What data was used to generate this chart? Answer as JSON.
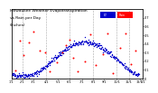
{
  "title_line1": "Milwaukee Weather Evapotranspiration",
  "title_line2": "vs Rain per Day",
  "title_line3": "(Inches)",
  "title_fontsize": 3.2,
  "background_color": "#ffffff",
  "legend_labels": [
    "ET",
    "Rain"
  ],
  "legend_colors": [
    "#0000cc",
    "#ff0000"
  ],
  "xlim": [
    0,
    170
  ],
  "ylim": [
    0,
    0.8
  ],
  "grid_x": [
    14,
    45,
    75,
    106,
    136,
    152
  ],
  "xtick_labels": [
    "1/1",
    "2/1",
    "3/1",
    "4/1",
    "5/1",
    "6/1",
    "7/1",
    "8/1",
    "9/1",
    "10/1",
    "11/1",
    "12/1",
    "1/1"
  ],
  "xtick_positions": [
    0,
    14,
    28,
    45,
    60,
    75,
    91,
    106,
    120,
    136,
    152,
    166,
    170
  ],
  "right_ytick_labels": [
    "0",
    "0.1",
    "0.2",
    "0.3",
    "0.4",
    "0.5",
    "0.6",
    "0.7"
  ],
  "right_ytick_positions": [
    0,
    0.1,
    0.2,
    0.3,
    0.4,
    0.5,
    0.6,
    0.7
  ],
  "marker_size": 1.0,
  "et_color": "#0000cc",
  "rain_color": "#ff0000",
  "black_color": "#000000"
}
